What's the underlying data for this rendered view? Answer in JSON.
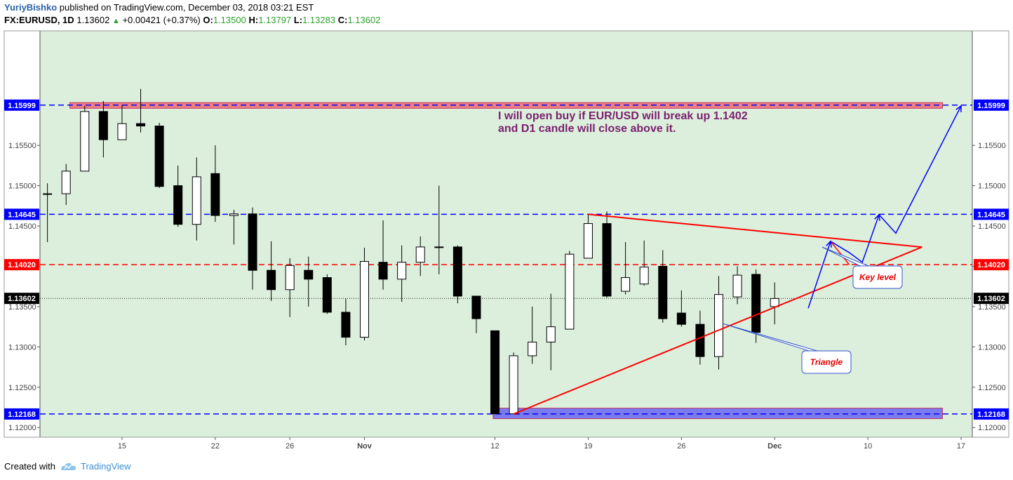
{
  "header": {
    "author": "YuriyBishko",
    "published_text": "published on TradingView.com, December 03, 2018 03:21 EST",
    "symbol": "FX:EURUSD, 1D",
    "last": "1.13602",
    "change": "+0.00421 (+0.37%)",
    "o_label": "O:",
    "o": "1.13500",
    "h_label": "H:",
    "h": "1.13797",
    "l_label": "L:",
    "l": "1.13283",
    "c_label": "C:",
    "c": "1.13602"
  },
  "footer": {
    "created_with": "Created with",
    "brand": "TradingView"
  },
  "colors": {
    "background": "#dcefdc",
    "resistance_zone": "#f08080",
    "support_zone": "#7b7bf0",
    "red_line": "#ff0000",
    "blue_line": "#0000ff",
    "annotation_text": "#7a1f6e"
  },
  "chart_data": {
    "type": "candlestick",
    "y_axis": {
      "ylim": [
        1.1188,
        1.1692
      ],
      "ticks": [
        "1.12000",
        "1.12500",
        "1.13000",
        "1.13500",
        "1.14000",
        "1.14500",
        "1.15000",
        "1.15500"
      ]
    },
    "x_axis": {
      "start_date": "2018-10-09",
      "xlim": [
        -0.4,
        49.6
      ],
      "ticks": [
        {
          "label": "15",
          "d": 4
        },
        {
          "label": "22",
          "d": 9
        },
        {
          "label": "26",
          "d": 13
        },
        {
          "label": "Nov",
          "d": 17
        },
        {
          "label": "12",
          "d": 24
        },
        {
          "label": "19",
          "d": 29
        },
        {
          "label": "26",
          "d": 34
        },
        {
          "label": "Dec",
          "d": 39
        },
        {
          "label": "10",
          "d": 44
        },
        {
          "label": "17",
          "d": 49
        }
      ]
    },
    "candles": [
      {
        "o": 1.149,
        "h": 1.1503,
        "l": 1.143,
        "c": 1.149
      },
      {
        "o": 1.149,
        "h": 1.1527,
        "l": 1.1476,
        "c": 1.1518
      },
      {
        "o": 1.1518,
        "h": 1.1599,
        "l": 1.1518,
        "c": 1.1592
      },
      {
        "o": 1.1592,
        "h": 1.1605,
        "l": 1.1535,
        "c": 1.1557
      },
      {
        "o": 1.1557,
        "h": 1.16,
        "l": 1.1557,
        "c": 1.1577
      },
      {
        "o": 1.1577,
        "h": 1.162,
        "l": 1.1566,
        "c": 1.1574
      },
      {
        "o": 1.1574,
        "h": 1.1578,
        "l": 1.1497,
        "c": 1.1499
      },
      {
        "o": 1.15,
        "h": 1.1525,
        "l": 1.1449,
        "c": 1.1452
      },
      {
        "o": 1.1452,
        "h": 1.1535,
        "l": 1.1432,
        "c": 1.1511
      },
      {
        "o": 1.1515,
        "h": 1.155,
        "l": 1.1455,
        "c": 1.1463
      },
      {
        "o": 1.1463,
        "h": 1.147,
        "l": 1.1427,
        "c": 1.1465
      },
      {
        "o": 1.1465,
        "h": 1.1473,
        "l": 1.1371,
        "c": 1.1395
      },
      {
        "o": 1.1395,
        "h": 1.1431,
        "l": 1.1357,
        "c": 1.1371
      },
      {
        "o": 1.1371,
        "h": 1.141,
        "l": 1.1337,
        "c": 1.1401
      },
      {
        "o": 1.1395,
        "h": 1.1412,
        "l": 1.135,
        "c": 1.1384
      },
      {
        "o": 1.1386,
        "h": 1.139,
        "l": 1.1341,
        "c": 1.1343
      },
      {
        "o": 1.1343,
        "h": 1.136,
        "l": 1.1302,
        "c": 1.1312
      },
      {
        "o": 1.1312,
        "h": 1.1423,
        "l": 1.1308,
        "c": 1.1406
      },
      {
        "o": 1.1405,
        "h": 1.1457,
        "l": 1.1371,
        "c": 1.1384
      },
      {
        "o": 1.1384,
        "h": 1.1426,
        "l": 1.1356,
        "c": 1.1405
      },
      {
        "o": 1.1405,
        "h": 1.1437,
        "l": 1.1388,
        "c": 1.1424
      },
      {
        "o": 1.1424,
        "h": 1.15,
        "l": 1.139,
        "c": 1.1424
      },
      {
        "o": 1.1424,
        "h": 1.1426,
        "l": 1.1354,
        "c": 1.1363
      },
      {
        "o": 1.1363,
        "h": 1.136,
        "l": 1.1317,
        "c": 1.1335
      },
      {
        "o": 1.132,
        "h": 1.132,
        "l": 1.1217,
        "c": 1.1217
      },
      {
        "o": 1.1217,
        "h": 1.1293,
        "l": 1.1217,
        "c": 1.1289
      },
      {
        "o": 1.1289,
        "h": 1.135,
        "l": 1.1279,
        "c": 1.1306
      },
      {
        "o": 1.1306,
        "h": 1.1366,
        "l": 1.1271,
        "c": 1.1325
      },
      {
        "o": 1.1322,
        "h": 1.1419,
        "l": 1.1322,
        "c": 1.1415
      },
      {
        "o": 1.141,
        "h": 1.1464,
        "l": 1.141,
        "c": 1.1453
      },
      {
        "o": 1.1453,
        "h": 1.1468,
        "l": 1.1361,
        "c": 1.1363
      },
      {
        "o": 1.1369,
        "h": 1.143,
        "l": 1.1365,
        "c": 1.1386
      },
      {
        "o": 1.1378,
        "h": 1.1432,
        "l": 1.1376,
        "c": 1.1399
      },
      {
        "o": 1.14,
        "h": 1.142,
        "l": 1.133,
        "c": 1.1335
      },
      {
        "o": 1.1342,
        "h": 1.137,
        "l": 1.1325,
        "c": 1.1328
      },
      {
        "o": 1.1328,
        "h": 1.1345,
        "l": 1.1278,
        "c": 1.1288
      },
      {
        "o": 1.1288,
        "h": 1.1388,
        "l": 1.1272,
        "c": 1.1365
      },
      {
        "o": 1.1362,
        "h": 1.14,
        "l": 1.1353,
        "c": 1.1389
      },
      {
        "o": 1.139,
        "h": 1.1396,
        "l": 1.1305,
        "c": 1.1318
      },
      {
        "o": 1.135,
        "h": 1.138,
        "l": 1.1328,
        "c": 1.136
      }
    ],
    "levels": [
      {
        "value": 1.15999,
        "label": "1.15999",
        "color": "#0000ff",
        "style": "dashed"
      },
      {
        "value": 1.14645,
        "label": "1.14645",
        "color": "#0000ff",
        "style": "dashed"
      },
      {
        "value": 1.1402,
        "label": "1.14020",
        "color": "#ff0000",
        "style": "dashed"
      },
      {
        "value": 1.13602,
        "label": "1.13602",
        "color": "#000000",
        "style": "dotted"
      },
      {
        "value": 1.12168,
        "label": "1.12168",
        "color": "#0000ff",
        "style": "dashed"
      }
    ],
    "zones": [
      {
        "from_d": 1.2,
        "to_d": 48.0,
        "y1": 1.1603,
        "y2": 1.1596,
        "color": "#f08080"
      },
      {
        "from_d": 23.9,
        "to_d": 48.0,
        "y1": 1.1224,
        "y2": 1.1211,
        "color": "#7b7bf0"
      }
    ],
    "triangle": {
      "upper": [
        [
          29.0,
          1.14645
        ],
        [
          46.9,
          1.14238
        ]
      ],
      "lower": [
        [
          25.0,
          1.12168
        ],
        [
          46.9,
          1.14238
        ]
      ],
      "upper_left_end": [
        29.0,
        1.14645
      ],
      "upper_right_apex": [
        46.9,
        1.14238
      ],
      "lower_meet": [
        40.7,
        1.13502
      ],
      "upper_meet": [
        40.7,
        1.1393
      ]
    },
    "projection_blue": [
      [
        40.8,
        1.1348
      ],
      [
        42.0,
        1.1431
      ],
      [
        43.0,
        1.1417
      ],
      [
        43.7,
        1.1405
      ],
      [
        44.6,
        1.1464
      ],
      [
        45.5,
        1.1441
      ],
      [
        49.0,
        1.1599
      ]
    ],
    "projection_red_segment": [
      [
        42.0,
        1.1431
      ],
      [
        43.0,
        1.1402
      ]
    ],
    "annotations": {
      "main": [
        "I will open buy if EUR/USD will break up 1.1402",
        "and D1 candle will close above it."
      ],
      "key_level": "Key level",
      "triangle": "Triangle"
    }
  }
}
